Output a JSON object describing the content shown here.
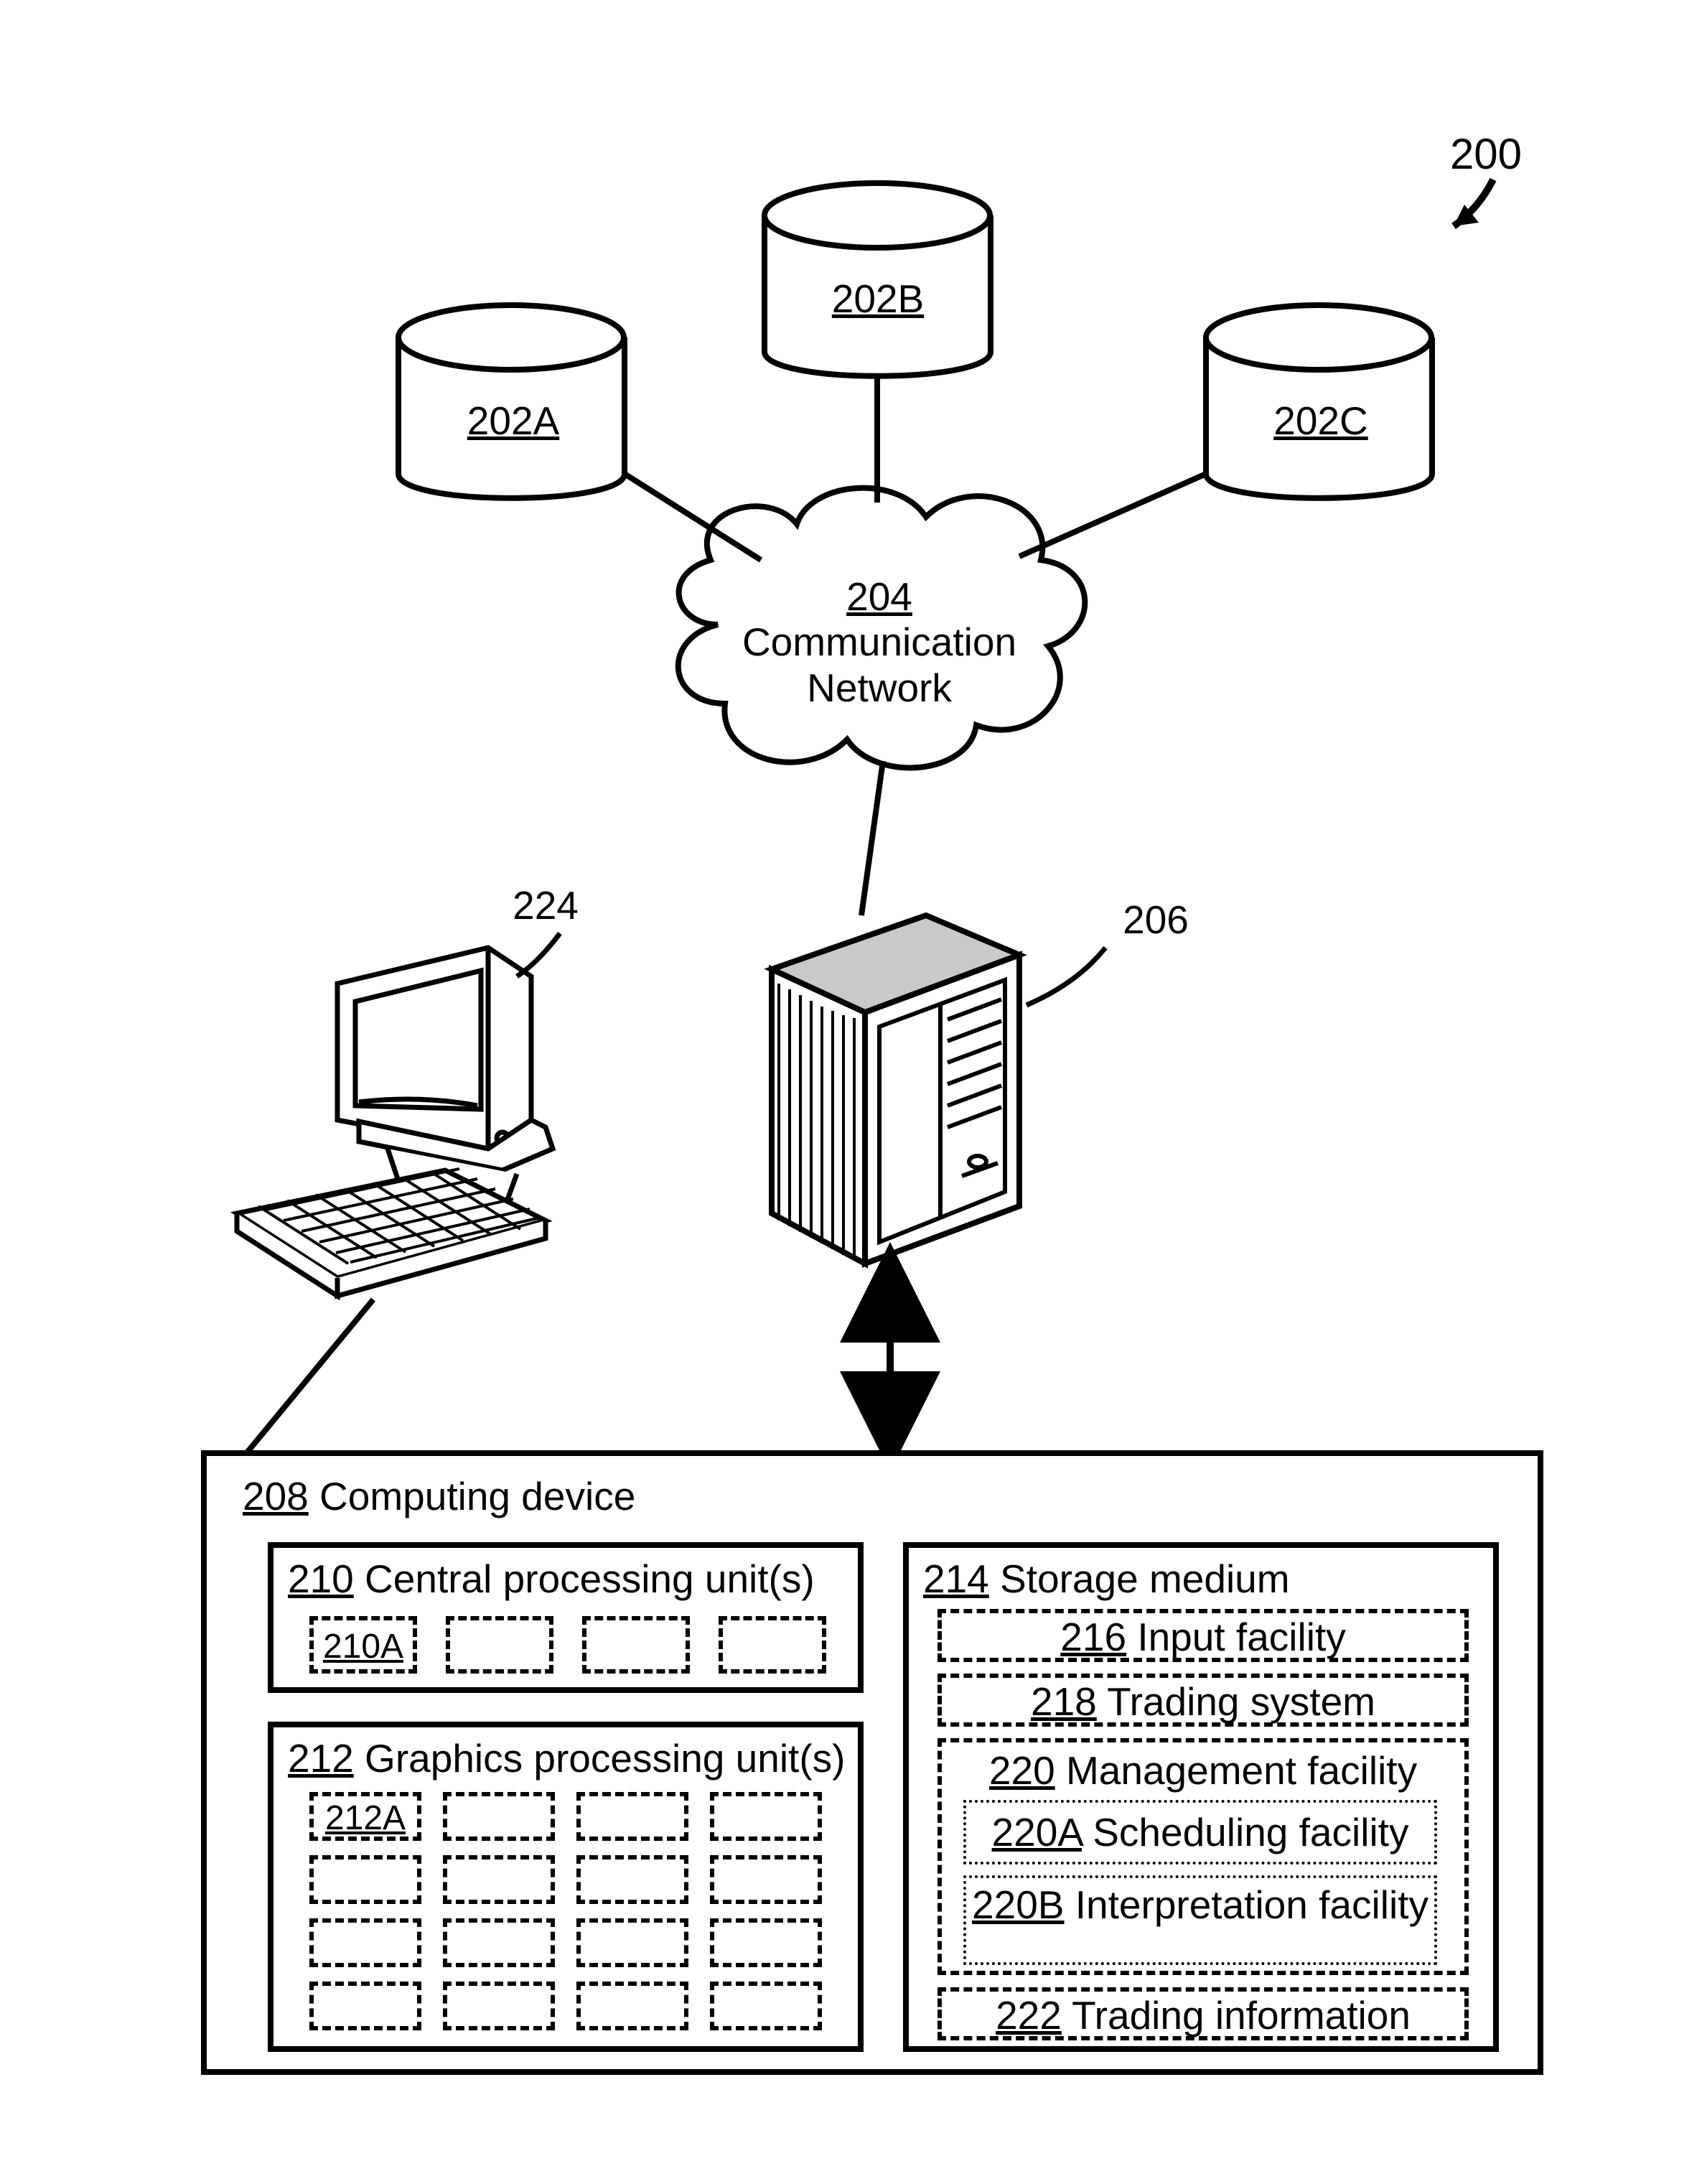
{
  "figure": {
    "ref_main": "200",
    "databases": {
      "a": "202A",
      "b": "202B",
      "c": "202C"
    },
    "network": {
      "ref": "204",
      "label": "Communication Network"
    },
    "server_ref": "206",
    "workstation_ref": "224",
    "computing_device": {
      "ref": "208",
      "label": "Computing device",
      "cpu": {
        "ref": "210",
        "label": "Central processing unit(s)",
        "core_ref": "210A",
        "core_count": 4
      },
      "gpu": {
        "ref": "212",
        "label": "Graphics processing unit(s)",
        "core_ref": "212A",
        "rows": 4,
        "cols": 4
      },
      "storage": {
        "ref": "214",
        "label": "Storage medium",
        "input": {
          "ref": "216",
          "label": "Input facility"
        },
        "trading_system": {
          "ref": "218",
          "label": "Trading system"
        },
        "management": {
          "ref": "220",
          "label": "Management facility",
          "scheduling": {
            "ref": "220A",
            "label": "Scheduling facility"
          },
          "interpretation": {
            "ref": "220B",
            "label": "Interpretation facility"
          }
        },
        "trading_info": {
          "ref": "222",
          "label": "Trading information"
        }
      }
    }
  },
  "style": {
    "line_color": "#000000",
    "line_width_main": 8,
    "line_width_thin": 6,
    "font_size_label": 55,
    "background": "#ffffff",
    "server_top_fill": "#c9c9c9"
  }
}
